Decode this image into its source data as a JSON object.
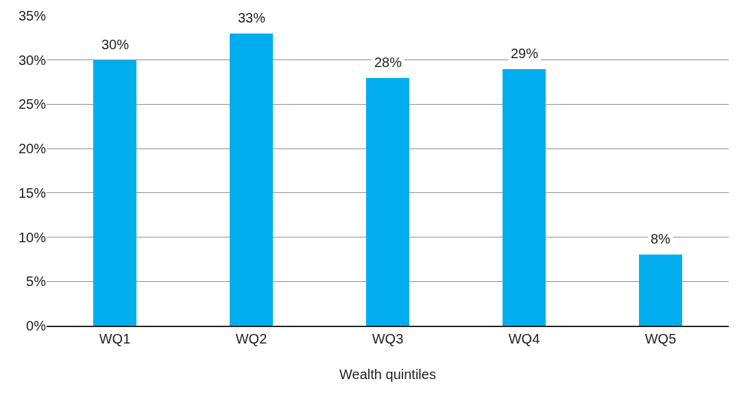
{
  "chart_data": {
    "type": "bar",
    "xlabel": "Wealth quintiles",
    "categories": [
      "WQ1",
      "WQ2",
      "WQ3",
      "WQ4",
      "WQ5"
    ],
    "values": [
      30,
      33,
      28,
      29,
      8
    ],
    "value_labels": [
      "30%",
      "33%",
      "28%",
      "29%",
      "8%"
    ],
    "color": "#00aeef",
    "ylim": [
      0,
      35
    ],
    "yticks": [
      {
        "value": 0,
        "label": "0%"
      },
      {
        "value": 5,
        "label": "5%"
      },
      {
        "value": 10,
        "label": "10%"
      },
      {
        "value": 15,
        "label": "15%"
      },
      {
        "value": 20,
        "label": "20%"
      },
      {
        "value": 25,
        "label": "25%"
      },
      {
        "value": 30,
        "label": "30%"
      },
      {
        "value": 35,
        "label": "35%"
      }
    ],
    "grid": "y",
    "legend": false
  }
}
